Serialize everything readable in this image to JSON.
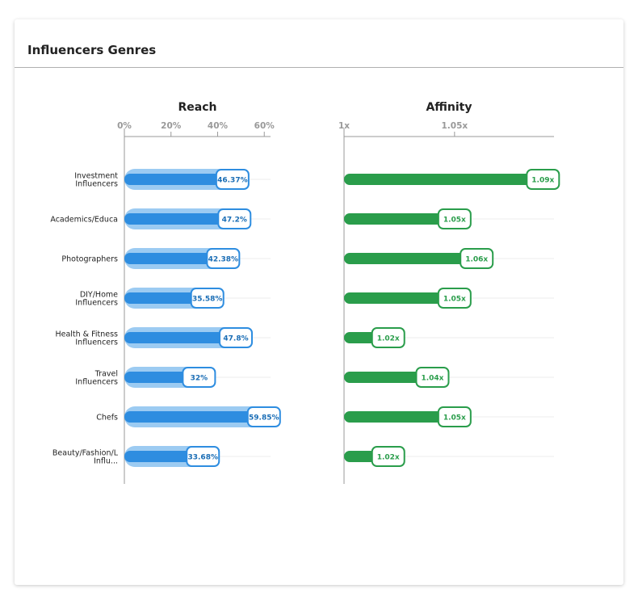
{
  "panel": {
    "title": "Influencers Genres"
  },
  "chart_data": {
    "type": "bar",
    "categories": [
      [
        "Investment",
        "Influencers"
      ],
      [
        "Academics/Educa"
      ],
      [
        "Photographers"
      ],
      [
        "DIY/Home",
        "Influencers"
      ],
      [
        "Health & Fitness",
        "Influencers"
      ],
      [
        "Travel",
        "Influencers"
      ],
      [
        "Chefs"
      ],
      [
        "Beauty/Fashion/L",
        "Influ..."
      ]
    ],
    "reach": {
      "title": "Reach",
      "ticks": [
        "0%",
        "20%",
        "40%",
        "60%"
      ],
      "tick_values": [
        0,
        20,
        40,
        60
      ],
      "xlim": [
        0,
        62
      ],
      "values": [
        46.37,
        47.2,
        42.38,
        35.58,
        47.8,
        32,
        59.85,
        33.68
      ],
      "labels": [
        "46.37%",
        "47.2%",
        "42.38%",
        "35.58%",
        "47.8%",
        "32%",
        "59.85%",
        "33.68%"
      ],
      "color": "#2e8de0",
      "track_color": "#9ccbf2",
      "label_color": "#1a6db5"
    },
    "affinity": {
      "title": "Affinity",
      "ticks": [
        "1x",
        "1.05x"
      ],
      "tick_values": [
        1,
        1.05
      ],
      "xlim": [
        1,
        1.095
      ],
      "values": [
        1.09,
        1.05,
        1.06,
        1.05,
        1.02,
        1.04,
        1.05,
        1.02
      ],
      "labels": [
        "1.09x",
        "1.05x",
        "1.06x",
        "1.05x",
        "1.02x",
        "1.04x",
        "1.05x",
        "1.02x"
      ],
      "color": "#2a9d4b",
      "label_color": "#2a9d4b"
    },
    "axis_color": "#999999",
    "grid_color": "#eeeeee"
  }
}
